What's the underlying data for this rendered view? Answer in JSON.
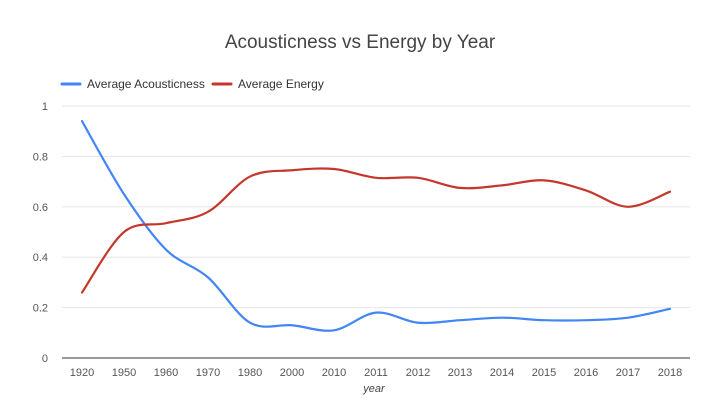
{
  "chart_data": {
    "type": "line",
    "title": "Acousticness vs Energy by Year",
    "xlabel": "year",
    "ylabel": "",
    "categories": [
      "1920",
      "1950",
      "1960",
      "1970",
      "1980",
      "2000",
      "2010",
      "2011",
      "2012",
      "2013",
      "2014",
      "2015",
      "2016",
      "2017",
      "2018"
    ],
    "ylim": [
      0,
      1
    ],
    "yticks": [
      "0",
      "0.2",
      "0.4",
      "0.6",
      "0.8",
      "1"
    ],
    "grid": true,
    "legend_position": "top-left",
    "curve": "smooth",
    "series": [
      {
        "name": "Average Acousticness",
        "color": "#4285f4",
        "values": [
          0.94,
          0.65,
          0.43,
          0.32,
          0.14,
          0.13,
          0.11,
          0.18,
          0.14,
          0.15,
          0.16,
          0.15,
          0.15,
          0.16,
          0.195
        ]
      },
      {
        "name": "Average Energy",
        "color": "#c5372c",
        "values": [
          0.26,
          0.5,
          0.535,
          0.58,
          0.72,
          0.745,
          0.75,
          0.715,
          0.715,
          0.675,
          0.685,
          0.705,
          0.665,
          0.6,
          0.66
        ]
      }
    ]
  }
}
